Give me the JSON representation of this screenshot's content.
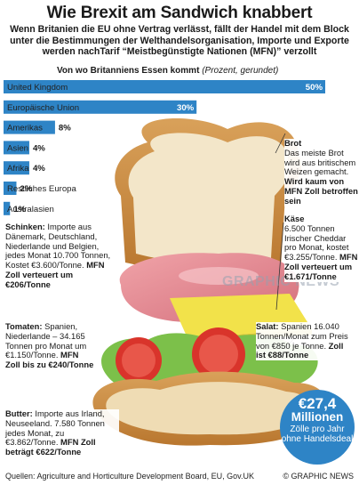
{
  "title": "Wie Brexit am Sandwich knabbert",
  "subtitle": "Wenn Britanien die EU ohne Vertrag verlässt, fällt der Handel mit dem Block unter die Bestimmungen der Welthandelsorganisation, Importe und Exporte werden nachTarif  “Meistbegünstigte Nationen (MFN)” verzollt",
  "chart_heading": "Von wo Britanniens Essen kommt",
  "chart_unit": "(Prozent, gerundet)",
  "chart_data": {
    "type": "bar",
    "orientation": "horizontal",
    "categories": [
      "United Kingdom",
      "Europäische Union",
      "Amerikas",
      "Asien",
      "Afrika",
      "Restliches Europa",
      "Australasien"
    ],
    "values": [
      50,
      30,
      8,
      4,
      4,
      2,
      1
    ],
    "value_labels": [
      "50%",
      "30%",
      "8%",
      "4%",
      "4%",
      "2%",
      "1%"
    ],
    "xlim": [
      0,
      50
    ],
    "grid": false,
    "colors": [
      "#2e84c6",
      "#2e84c6",
      "#2e84c6",
      "#2e84c6",
      "#2e84c6",
      "#2e84c6",
      "#2e84c6"
    ]
  },
  "callouts": {
    "brot": {
      "head": "Brot",
      "body": "Das meiste Brot wird aus britischem Weizen gemacht.",
      "strong": "Wird kaum von MFN Zoll betroffen sein"
    },
    "kaese": {
      "head": "Käse",
      "body": "6.500 Tonnen Irischer Cheddar pro Monat, kostet €3.255/Tonne.",
      "strong": "MFN Zoll verteuert um €1.671/Tonne"
    },
    "schinken": {
      "head": "Schinken:",
      "body": "Importe aus Dänemark, Deutschland, Niederlande und Belgien, jedes Monat 10.700 Tonnen, Kostet €3.600/Tonne.",
      "strong_inline": "MFN",
      "strong": "Zoll verteuert um €206/Tonne"
    },
    "salat": {
      "head": "Salat:",
      "body": "Spanien 16.040 Tonnen/Monat zum Preis von €850 je Tonne.",
      "strong": "Zoll ist €88/Tonne"
    },
    "tomaten": {
      "head": "Tomaten:",
      "body": "Spanien, Niederlande – 34.165 Tonnen pro Monat um €1.150/Tonne.",
      "strong": "MFN Zoll bis zu €240/Tonne"
    },
    "butter": {
      "head": "Butter:",
      "body": "Importe aus Irland, Neuseeland. 7.580 Tonnen jedes Monat, zu €3.862/Tonne.",
      "strong": "MFN Zoll beträgt €622/Tonne"
    }
  },
  "badge": {
    "amount": "€27,4",
    "unit": "Millionen",
    "desc": "Zölle pro Jahr ohne Handelsdeal"
  },
  "watermark": "GRAPHIC NEWS",
  "footer": {
    "source": "Quellen: Agriculture and Horticulture Development Board, EU, Gov.UK",
    "credit": "© GRAPHIC NEWS"
  }
}
